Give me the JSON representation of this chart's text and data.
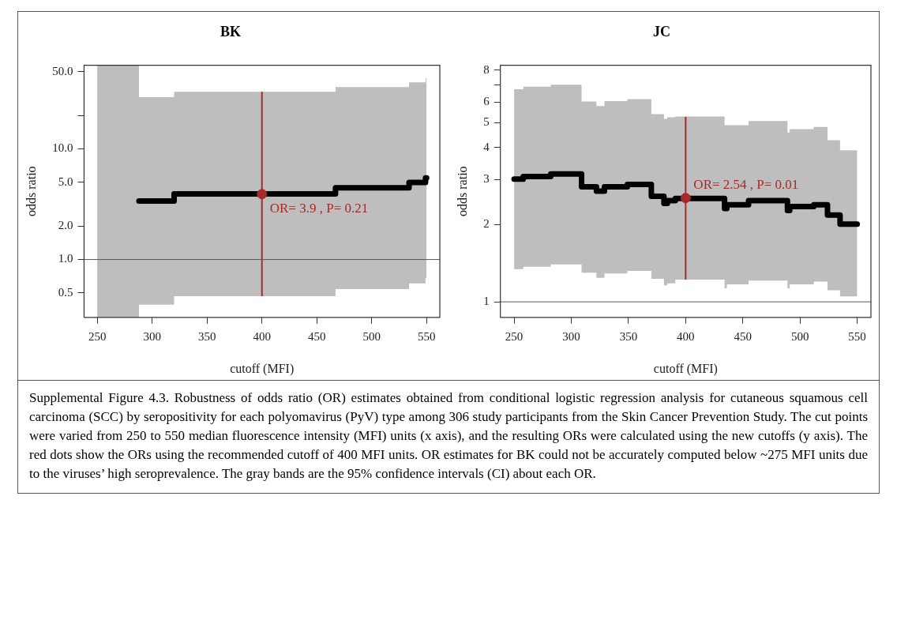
{
  "chart_data": [
    {
      "type": "step",
      "title": "BK",
      "xlabel": "cutoff (MFI)",
      "ylabel": "odds ratio",
      "log": "y",
      "grid": false,
      "legend": false,
      "xlim": [
        238,
        562
      ],
      "xticks": [
        250,
        300,
        350,
        400,
        450,
        500,
        550
      ],
      "ylim": [
        0.3,
        57
      ],
      "yticks": [
        {
          "value": 0.5,
          "label": "0.5"
        },
        {
          "value": 1,
          "label": "1.0"
        },
        {
          "value": 2,
          "label": "2.0"
        },
        {
          "value": 5,
          "label": "5.0"
        },
        {
          "value": 10,
          "label": "10.0"
        },
        {
          "value": 20,
          "label": null
        },
        {
          "value": 50,
          "label": "50.0"
        }
      ],
      "ref_lines": [
        {
          "axis": "y",
          "value": 1,
          "color": "#595959"
        }
      ],
      "bands": [
        {
          "axis": "x",
          "from": 250,
          "to": 288,
          "color": "#bebebe"
        }
      ],
      "series": [
        {
          "color": "#000000",
          "x": [
            288,
            320,
            467,
            534,
            549,
            550
          ],
          "values": [
            3.38,
            3.92,
            4.45,
            4.98,
            5.46,
            5.46
          ],
          "lower": [
            0.39,
            0.467,
            0.54,
            0.61,
            0.68,
            0.68
          ],
          "upper": [
            29.3,
            32.8,
            36.2,
            39.9,
            43.6,
            43.6
          ]
        },
        {
          "type": "scatter",
          "color": "#a52a2a",
          "marker": "circle",
          "x": [
            400
          ],
          "values": [
            3.9
          ],
          "errors": [
            [
              0.467,
              32.8
            ]
          ]
        }
      ],
      "annotations": [
        {
          "text": "OR= 3.9 , P= 0.21",
          "x": 400,
          "y": 3.9
        },
        "Supplemental Figure 4.3. Robustness of odds ratio (OR) estimates obtained from conditional logistic regression analysis for cutaneous squamous cell carcinoma (SCC) by seropositivity for each polyomavirus (PyV) type among 306 study participants from the Skin Cancer Prevention Study. The cut points were varied from 250 to 550 median fluorescence intensity (MFI) units (x axis), and the resulting ORs were calculated using the new cutoffs (y axis). The red dots show the ORs using the recommended cutoff of 400 MFI units. OR estimates for BK could not be accurately computed below ~275 MFI units due to the viruses’ high seroprevalence. The gray bands are the 95% confidence intervals (CI) about each OR."
      ]
    },
    {
      "type": "step",
      "title": "JC",
      "xlabel": "cutoff (MFI)",
      "ylabel": "odds ratio",
      "log": "y",
      "grid": false,
      "legend": false,
      "xlim": [
        238,
        562
      ],
      "xticks": [
        250,
        300,
        350,
        400,
        450,
        500,
        550
      ],
      "ylim": [
        0.87,
        8.36
      ],
      "yticks": [
        1,
        2,
        3,
        4,
        5,
        6,
        {
          "value": 7,
          "label": null
        },
        8
      ],
      "ref_lines": [
        {
          "axis": "y",
          "value": 1,
          "color": "#595959"
        }
      ],
      "series": [
        {
          "color": "#000000",
          "x": [
            250,
            258,
            282,
            309,
            322,
            329,
            349,
            370,
            381,
            384,
            391,
            434,
            436,
            455,
            489,
            491,
            512,
            524,
            535,
            550
          ],
          "values": [
            3.01,
            3.08,
            3.15,
            2.81,
            2.7,
            2.81,
            2.87,
            2.58,
            2.42,
            2.48,
            2.53,
            2.31,
            2.39,
            2.48,
            2.27,
            2.35,
            2.39,
            2.18,
            2.01,
            2.01
          ],
          "lower": [
            1.34,
            1.37,
            1.4,
            1.3,
            1.24,
            1.29,
            1.32,
            1.23,
            1.16,
            1.18,
            1.22,
            1.13,
            1.17,
            1.21,
            1.13,
            1.17,
            1.2,
            1.11,
            1.05,
            1.05
          ],
          "upper": [
            6.74,
            6.9,
            7.02,
            6.04,
            5.8,
            6.06,
            6.17,
            5.39,
            5.17,
            5.24,
            5.28,
            4.88,
            4.88,
            5.07,
            4.57,
            4.71,
            4.8,
            4.27,
            3.9,
            3.9
          ]
        },
        {
          "type": "scatter",
          "color": "#a52a2a",
          "marker": "circle",
          "x": [
            400
          ],
          "values": [
            2.54
          ],
          "errors": [
            [
              1.22,
              5.26
            ]
          ]
        }
      ],
      "annotations": [
        {
          "text": "OR= 2.54 , P= 0.01",
          "x": 400,
          "y": 2.54
        }
      ]
    }
  ]
}
